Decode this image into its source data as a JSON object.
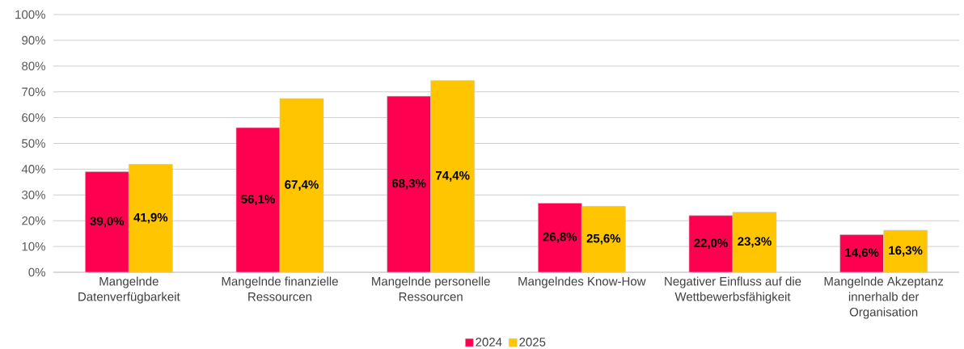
{
  "chart_data": {
    "type": "bar",
    "categories": [
      "Mangelnde Datenverfügbarkeit",
      "Mangelnde finanzielle Ressourcen",
      "Mangelnde personelle Ressourcen",
      "Mangelndes Know-How",
      "Negativer Einfluss auf die Wettbewerbsfähigkeit",
      "Mangelnde Akzeptanz innerhalb der Organisation"
    ],
    "series": [
      {
        "name": "2024",
        "color": "#ff0050",
        "values": [
          39.0,
          56.1,
          68.3,
          26.8,
          22.0,
          14.6
        ],
        "value_labels": [
          "39,0%",
          "56,1%",
          "68,3%",
          "26,8%",
          "22,0%",
          "14,6%"
        ]
      },
      {
        "name": "2025",
        "color": "#ffc600",
        "values": [
          41.9,
          67.4,
          74.4,
          25.6,
          23.3,
          16.3
        ],
        "value_labels": [
          "41,9%",
          "67,4%",
          "74,4%",
          "25,6%",
          "23,3%",
          "16,3%"
        ]
      }
    ],
    "ylim": [
      0,
      100
    ],
    "yticks": [
      {
        "value": 0,
        "label": "0%"
      },
      {
        "value": 10,
        "label": "10%"
      },
      {
        "value": 20,
        "label": "20%"
      },
      {
        "value": 30,
        "label": "30%"
      },
      {
        "value": 40,
        "label": "40%"
      },
      {
        "value": 50,
        "label": "50%"
      },
      {
        "value": 60,
        "label": "60%"
      },
      {
        "value": 70,
        "label": "70%"
      },
      {
        "value": 80,
        "label": "80%"
      },
      {
        "value": 90,
        "label": "90%"
      },
      {
        "value": 100,
        "label": "100%"
      }
    ],
    "grid": "y",
    "legend": "bottom"
  }
}
